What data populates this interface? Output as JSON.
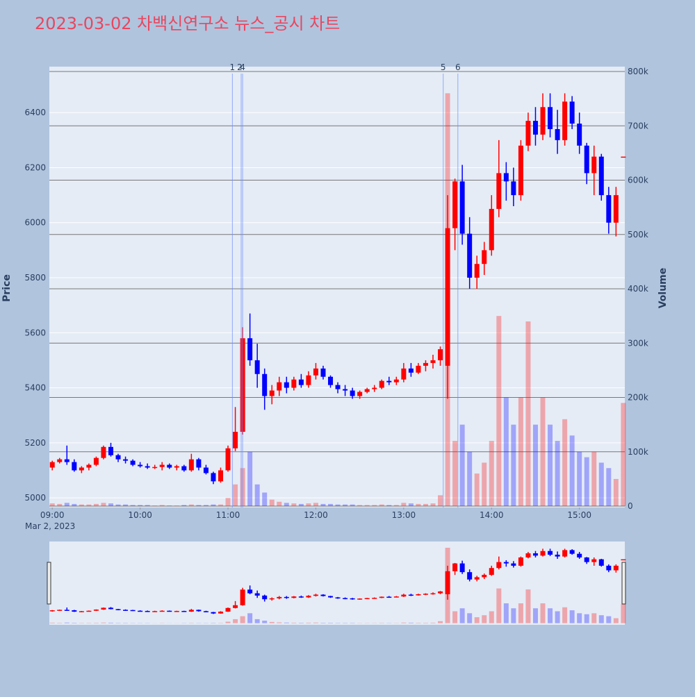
{
  "chart_data": {
    "type": "candlestick",
    "title": "2023-03-02 차백신연구소 뉴스_공시 차트",
    "x_date_label": "Mar 2, 2023",
    "y_label": "Price",
    "y2_label": "Volume",
    "rising_color": "#ff0000",
    "falling_color": "#0000ff",
    "xlim": [
      "08:58",
      "15:31"
    ],
    "xticks": [
      "09:00",
      "10:00",
      "11:00",
      "12:00",
      "13:00",
      "14:00",
      "15:00"
    ],
    "ylim": [
      4965,
      6567
    ],
    "yticks": [
      5000,
      5200,
      5400,
      5600,
      5800,
      6000,
      6200,
      6400
    ],
    "y2lim": [
      -2500,
      809000
    ],
    "y2ticks": [
      0,
      {
        "value": 100000,
        "label": "100k"
      },
      {
        "value": 200000,
        "label": "200k"
      },
      {
        "value": 300000,
        "label": "300k"
      },
      {
        "value": 400000,
        "label": "400k"
      },
      {
        "value": 500000,
        "label": "500k"
      },
      {
        "value": 600000,
        "label": "600k"
      },
      {
        "value": 700000,
        "label": "700k"
      },
      {
        "value": 800000,
        "label": "800k"
      }
    ],
    "annotations": [
      {
        "label": "1",
        "x": "11:03"
      },
      {
        "label": "2",
        "x": "11:09"
      },
      {
        "label": "4",
        "x": "11:10"
      },
      {
        "label": "5",
        "x": "13:27"
      },
      {
        "label": "6",
        "x": "13:37"
      }
    ],
    "x": [
      "09:00",
      "09:05",
      "09:10",
      "09:15",
      "09:20",
      "09:25",
      "09:30",
      "09:35",
      "09:40",
      "09:45",
      "09:50",
      "09:55",
      "10:00",
      "10:05",
      "10:10",
      "10:15",
      "10:20",
      "10:25",
      "10:30",
      "10:35",
      "10:40",
      "10:45",
      "10:50",
      "10:55",
      "11:00",
      "11:05",
      "11:10",
      "11:15",
      "11:20",
      "11:25",
      "11:30",
      "11:35",
      "11:40",
      "11:45",
      "11:50",
      "11:55",
      "12:00",
      "12:05",
      "12:10",
      "12:15",
      "12:20",
      "12:25",
      "12:30",
      "12:35",
      "12:40",
      "12:45",
      "12:50",
      "12:55",
      "13:00",
      "13:05",
      "13:10",
      "13:15",
      "13:20",
      "13:25",
      "13:30",
      "13:35",
      "13:40",
      "13:45",
      "13:50",
      "13:55",
      "14:00",
      "14:05",
      "14:10",
      "14:15",
      "14:20",
      "14:25",
      "14:30",
      "14:35",
      "14:40",
      "14:45",
      "14:50",
      "14:55",
      "15:00",
      "15:05",
      "15:10",
      "15:15",
      "15:20",
      "15:25",
      "15:30"
    ],
    "open": [
      5110,
      5130,
      5140,
      5130,
      5100,
      5110,
      5120,
      5145,
      5185,
      5155,
      5140,
      5135,
      5120,
      5115,
      5110,
      5112,
      5120,
      5110,
      5115,
      5100,
      5140,
      5110,
      5090,
      5060,
      5100,
      5180,
      5240,
      5580,
      5500,
      5450,
      5370,
      5390,
      5420,
      5400,
      5430,
      5410,
      5445,
      5470,
      5440,
      5410,
      5395,
      5390,
      5370,
      5385,
      5395,
      5400,
      5425,
      5420,
      5430,
      5470,
      5455,
      5480,
      5490,
      5500,
      5480,
      5980,
      6150,
      5960,
      5800,
      5850,
      5900,
      6050,
      6180,
      6150,
      6100,
      6280,
      6370,
      6320,
      6420,
      6340,
      6300,
      6440,
      6360,
      6280,
      6180,
      6240,
      6100,
      6000,
      6240
    ],
    "high": [
      5135,
      5145,
      5190,
      5140,
      5115,
      5125,
      5150,
      5190,
      5200,
      5160,
      5150,
      5140,
      5130,
      5125,
      5120,
      5130,
      5125,
      5120,
      5120,
      5160,
      5145,
      5120,
      5095,
      5110,
      5190,
      5330,
      5620,
      5670,
      5560,
      5470,
      5410,
      5440,
      5440,
      5440,
      5450,
      5460,
      5490,
      5480,
      5445,
      5420,
      5410,
      5400,
      5390,
      5400,
      5410,
      5430,
      5440,
      5440,
      5490,
      5490,
      5490,
      5500,
      5520,
      5550,
      6100,
      6160,
      6210,
      6020,
      5880,
      5930,
      6100,
      6300,
      6220,
      6200,
      6300,
      6400,
      6420,
      6470,
      6470,
      6410,
      6470,
      6460,
      6400,
      6290,
      6280,
      6250,
      6130,
      6130,
      6240
    ],
    "low": [
      5100,
      5125,
      5120,
      5095,
      5090,
      5100,
      5115,
      5140,
      5150,
      5130,
      5125,
      5115,
      5110,
      5105,
      5105,
      5100,
      5105,
      5100,
      5095,
      5095,
      5100,
      5085,
      5050,
      5055,
      5095,
      5170,
      5230,
      5480,
      5400,
      5320,
      5340,
      5370,
      5380,
      5390,
      5400,
      5400,
      5430,
      5430,
      5400,
      5380,
      5370,
      5360,
      5360,
      5380,
      5385,
      5395,
      5410,
      5410,
      5420,
      5440,
      5450,
      5460,
      5470,
      5480,
      5360,
      5900,
      5920,
      5760,
      5760,
      5810,
      5880,
      6020,
      6080,
      6060,
      6080,
      6260,
      6280,
      6300,
      6310,
      6250,
      6280,
      6340,
      6250,
      6140,
      6100,
      6080,
      5960,
      5950,
      6240
    ],
    "close": [
      5130,
      5140,
      5130,
      5100,
      5110,
      5120,
      5145,
      5185,
      5155,
      5140,
      5135,
      5120,
      5115,
      5110,
      5112,
      5120,
      5110,
      5115,
      5100,
      5140,
      5110,
      5090,
      5060,
      5100,
      5180,
      5240,
      5580,
      5500,
      5450,
      5370,
      5390,
      5420,
      5400,
      5430,
      5410,
      5445,
      5470,
      5440,
      5410,
      5395,
      5390,
      5370,
      5385,
      5395,
      5400,
      5425,
      5420,
      5430,
      5470,
      5455,
      5480,
      5490,
      5500,
      5540,
      5980,
      6150,
      5960,
      5800,
      5850,
      5900,
      6050,
      6180,
      6150,
      6100,
      6280,
      6370,
      6320,
      6420,
      6340,
      6300,
      6440,
      6360,
      6280,
      6180,
      6240,
      6100,
      6000,
      6100,
      6240
    ],
    "volume": [
      5000,
      4000,
      6000,
      4000,
      3000,
      3000,
      4000,
      6000,
      5000,
      3000,
      3000,
      2000,
      2000,
      2000,
      1000,
      2000,
      1000,
      1000,
      2000,
      3000,
      2000,
      2000,
      3000,
      3000,
      15000,
      40000,
      70000,
      100000,
      40000,
      25000,
      12000,
      8000,
      6000,
      5000,
      4000,
      5000,
      6000,
      4000,
      4000,
      3000,
      3000,
      3000,
      2000,
      2000,
      2000,
      3000,
      2000,
      2000,
      6000,
      5000,
      4000,
      4000,
      5000,
      20000,
      760000,
      120000,
      150000,
      100000,
      60000,
      80000,
      120000,
      350000,
      200000,
      150000,
      200000,
      340000,
      150000,
      200000,
      150000,
      120000,
      160000,
      130000,
      100000,
      90000,
      100000,
      80000,
      70000,
      50000,
      190000
    ]
  }
}
